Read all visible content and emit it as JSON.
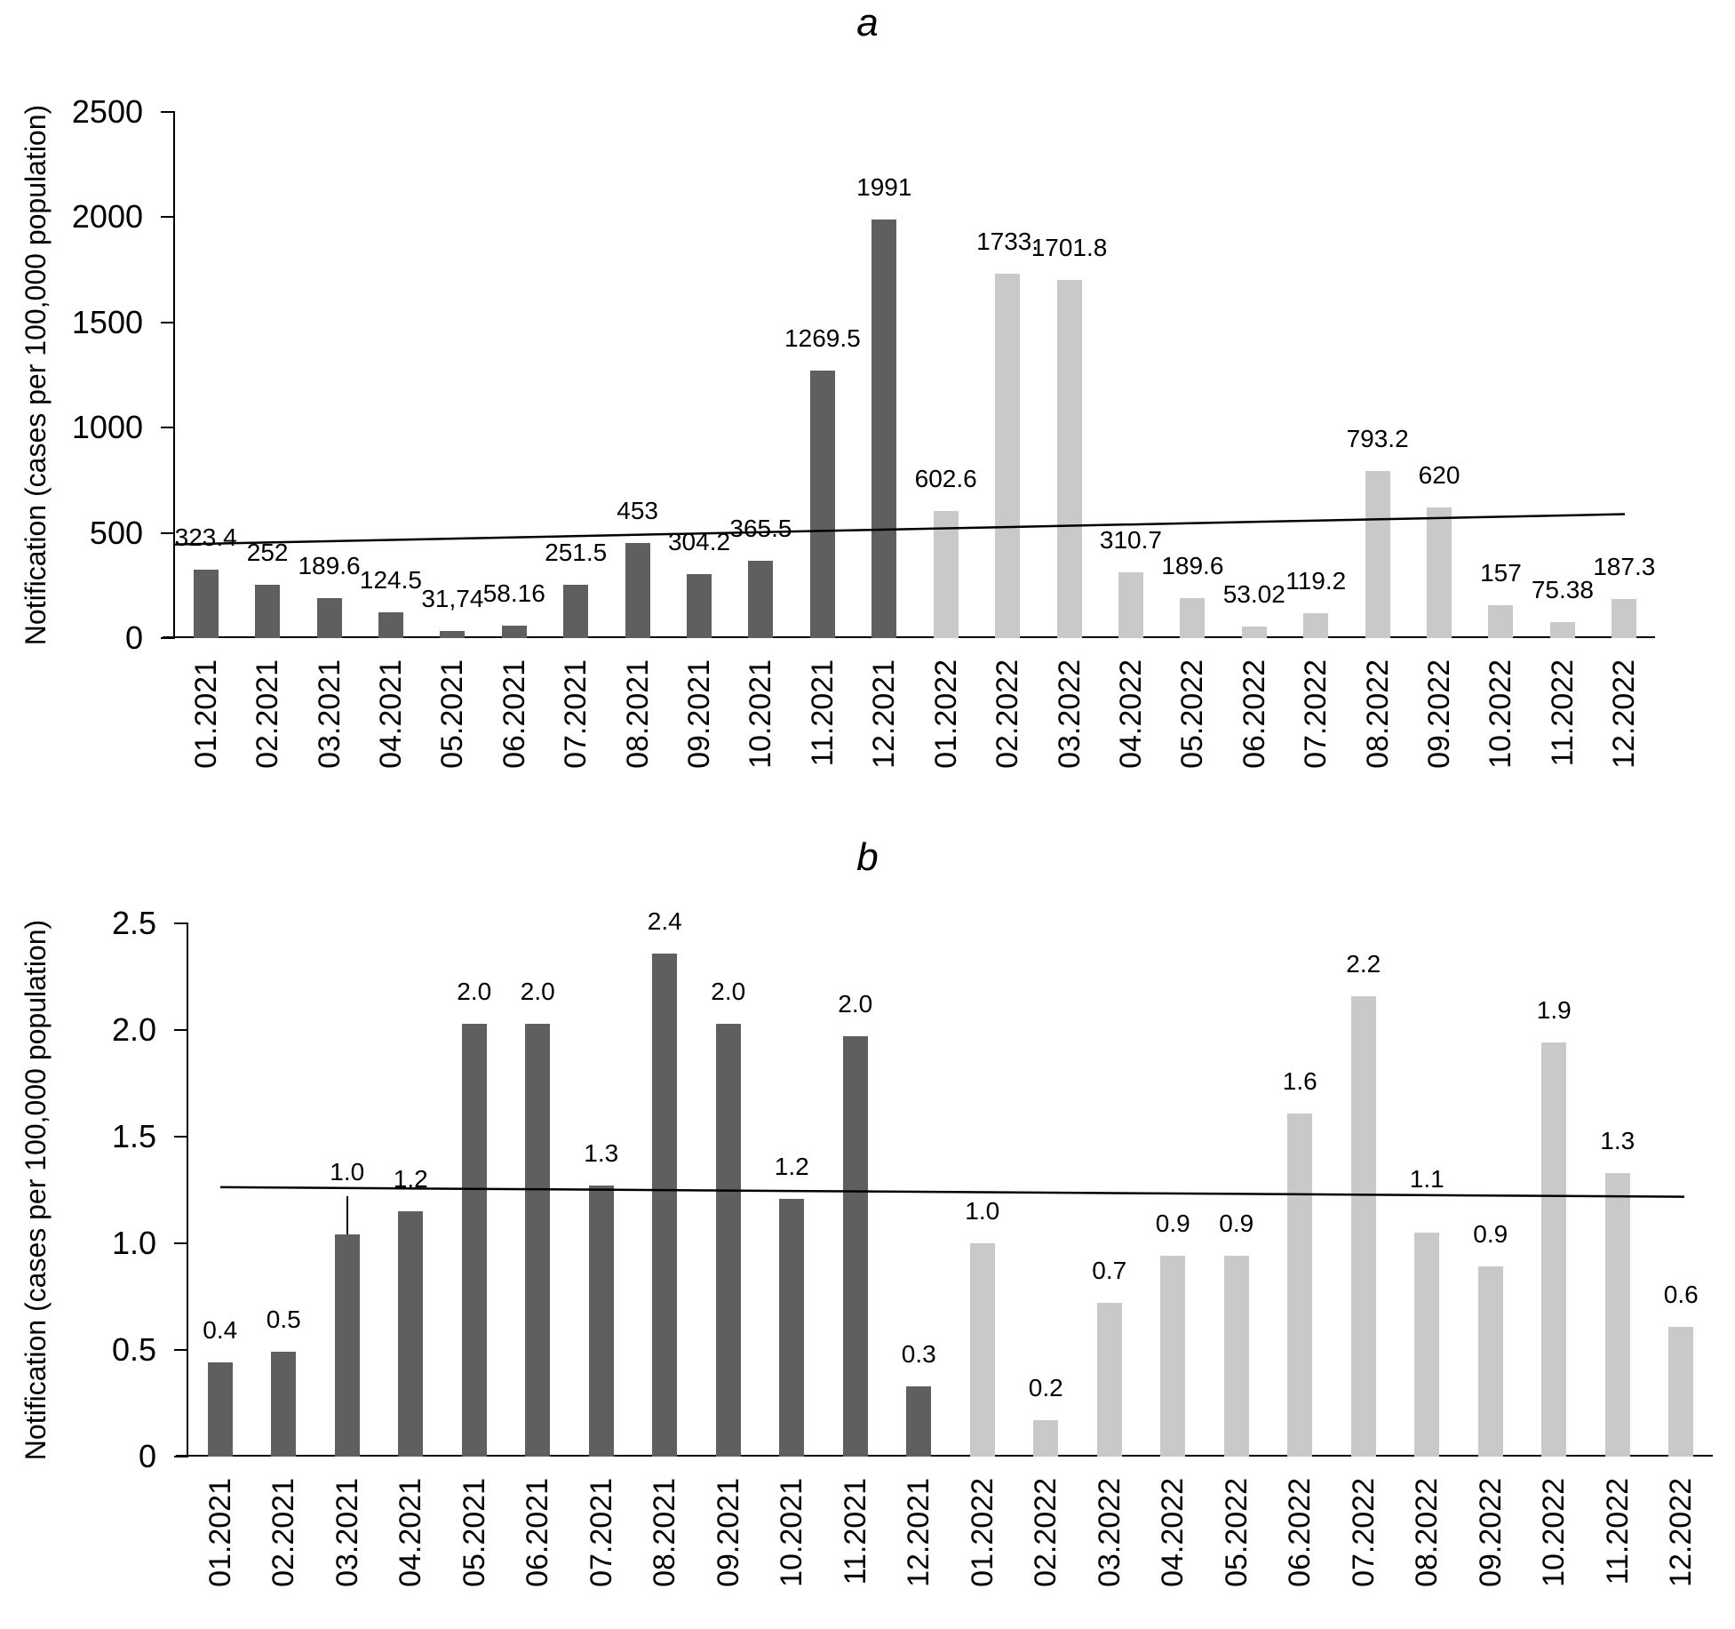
{
  "chart_data": [
    {
      "type": "bar",
      "panel_label": "a",
      "ylabel": "Notification (cases per 100,000 population)",
      "xlabel": "",
      "ylim": [
        0,
        2500
      ],
      "yticks": [
        0,
        500,
        1000,
        1500,
        2000,
        2500
      ],
      "ytick_labels": [
        "0",
        "500",
        "1000",
        "1500",
        "2000",
        "2500"
      ],
      "grid": false,
      "legend": "none",
      "categories": [
        "01.2021",
        "02.2021",
        "03.2021",
        "04.2021",
        "05.2021",
        "06.2021",
        "07.2021",
        "08.2021",
        "09.2021",
        "10.2021",
        "11.2021",
        "12.2021",
        "01.2022",
        "02.2022",
        "03.2022",
        "04.2022",
        "05.2022",
        "06.2022",
        "07.2022",
        "08.2022",
        "09.2022",
        "10.2022",
        "11.2022",
        "12.2022"
      ],
      "values": [
        323.4,
        252,
        189.6,
        124.5,
        31.74,
        58.16,
        251.5,
        453,
        304.2,
        365.5,
        1269.5,
        1991,
        602.6,
        1733,
        1701.8,
        310.7,
        189.6,
        53.02,
        119.2,
        793.2,
        620,
        157,
        75.38,
        187.3
      ],
      "data_labels": [
        "323.4",
        "252",
        "189.6",
        "124.5",
        "31,74",
        "58.16",
        "251.5",
        "453",
        "304.2",
        "365.5",
        "1269.5",
        "1991",
        "602.6",
        "1733.",
        "1701.8",
        "310.7",
        "189.6",
        "53.02",
        "119.2",
        "793.2",
        "620",
        "157",
        "75.38",
        "187.3"
      ],
      "split_index": 12,
      "colors": {
        "bars_2021": "#5f5f5f",
        "bars_2022": "#c9c9c9",
        "trendline": "#000000"
      },
      "trendline": {
        "type": "linear",
        "start_value": 445,
        "end_value": 589
      },
      "label_offsets": {},
      "leader_lines": []
    },
    {
      "type": "bar",
      "panel_label": "b",
      "ylabel": "Notification (cases per 100,000 population)",
      "xlabel": "",
      "ylim": [
        0,
        2.5
      ],
      "yticks": [
        0,
        0.5,
        1.0,
        1.5,
        2.0,
        2.5
      ],
      "ytick_labels": [
        "0",
        "0.5",
        "1.0",
        "1.5",
        "2.0",
        "2.5"
      ],
      "grid": false,
      "legend": "none",
      "categories": [
        "01.2021",
        "02.2021",
        "03.2021",
        "04.2021",
        "05.2021",
        "06.2021",
        "07.2021",
        "08.2021",
        "09.2021",
        "10.2021",
        "11.2021",
        "12.2021",
        "01.2022",
        "02.2022",
        "03.2022",
        "04.2022",
        "05.2022",
        "06.2022",
        "07.2022",
        "08.2022",
        "09.2022",
        "10.2022",
        "11.2022",
        "12.2022"
      ],
      "values": [
        0.44,
        0.49,
        1.04,
        1.15,
        2.03,
        2.03,
        1.27,
        2.36,
        2.03,
        1.21,
        1.97,
        0.33,
        1.0,
        0.17,
        0.72,
        0.94,
        0.94,
        1.61,
        2.16,
        1.05,
        0.89,
        1.94,
        1.33,
        0.61
      ],
      "data_labels": [
        "0.4",
        "0.5",
        "1.0",
        "1.2",
        "2.0",
        "2.0",
        "1.3",
        "2.4",
        "2.0",
        "1.2",
        "2.0",
        "0.3",
        "1.0",
        "0.2",
        "0.7",
        "0.9",
        "0.9",
        "1.6",
        "2.2",
        "1.1",
        "0.9",
        "1.9",
        "1.3",
        "0.6"
      ],
      "split_index": 12,
      "colors": {
        "bars_2021": "#5f5f5f",
        "bars_2022": "#c9c9c9",
        "trendline": "#000000"
      },
      "trendline": {
        "type": "linear",
        "start_value": 1.263,
        "end_value": 1.218
      },
      "label_offsets": {
        "2": -34,
        "19": -24
      },
      "leader_lines": [
        {
          "index": 2,
          "value_from": 1.04,
          "value_to": 1.22
        }
      ]
    }
  ]
}
